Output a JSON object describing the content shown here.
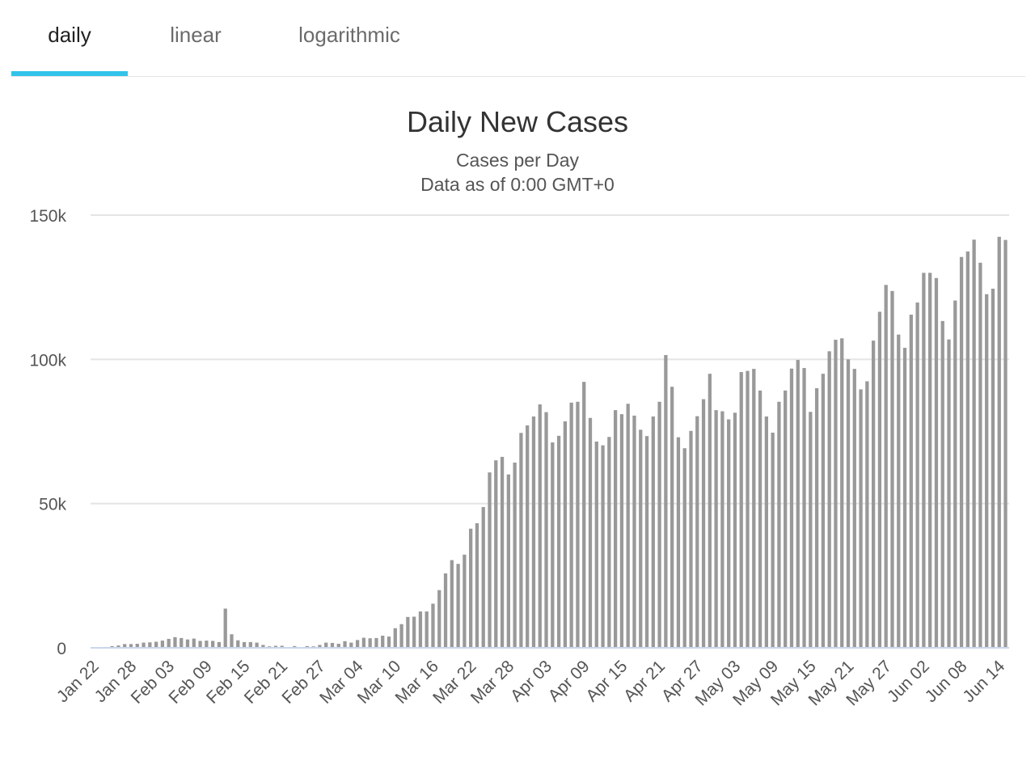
{
  "tabs": [
    {
      "label": "daily",
      "active": true
    },
    {
      "label": "linear",
      "active": false
    },
    {
      "label": "logarithmic",
      "active": false
    }
  ],
  "colors": {
    "accent": "#32c3ea",
    "bar": "#999999",
    "grid": "#e4e4e4",
    "baseline": "#ccd6eb"
  },
  "chart_data": {
    "type": "bar",
    "title": "Daily New Cases",
    "subtitle_lines": [
      "Cases per Day",
      "Data as of 0:00 GMT+0"
    ],
    "xlabel": "",
    "ylabel": "",
    "ylim": [
      0,
      150000
    ],
    "yticks": [
      0,
      50000,
      100000,
      150000
    ],
    "ytick_labels": [
      "0",
      "50k",
      "100k",
      "150k"
    ],
    "grid": true,
    "legend": "none",
    "start_date": "Jan 22",
    "xtick_labels": [
      "Jan 22",
      "Jan 28",
      "Feb 03",
      "Feb 09",
      "Feb 15",
      "Feb 21",
      "Feb 27",
      "Mar 04",
      "Mar 10",
      "Mar 16",
      "Mar 22",
      "Mar 28",
      "Apr 03",
      "Apr 09",
      "Apr 15",
      "Apr 21",
      "Apr 27",
      "May 03",
      "May 09",
      "May 15",
      "May 21",
      "May 27",
      "Jun 02",
      "Jun 08",
      "Jun 14"
    ],
    "series": [
      {
        "values": [
          0,
          100,
          300,
          600,
          800,
          1300,
          1300,
          1400,
          1800,
          1900,
          2100,
          2500,
          3100,
          3700,
          3400,
          2900,
          3200,
          2400,
          2500,
          2400,
          2000,
          13600,
          4700,
          2600,
          2000,
          2000,
          1800,
          1000,
          500,
          700,
          700,
          200,
          600,
          200,
          600,
          500,
          1000,
          1800,
          1700,
          1400,
          2300,
          1800,
          2700,
          3500,
          3300,
          3400,
          4200,
          3900,
          6800,
          8200,
          10700,
          10800,
          12600,
          12600,
          15300,
          20000,
          25800,
          30400,
          29100,
          32300,
          41300,
          43200,
          48800,
          60800,
          65000,
          66200,
          60100,
          64200,
          74500,
          77100,
          80200,
          84400,
          81700,
          71200,
          73500,
          78500,
          85000,
          85300,
          92200,
          79700,
          71500,
          70200,
          73100,
          82400,
          81000,
          84600,
          80500,
          75600,
          73400,
          80200,
          85300,
          101500,
          90500,
          73000,
          69200,
          75200,
          80300,
          86200,
          95000,
          82400,
          82000,
          79200,
          81500,
          95600,
          96000,
          96700,
          89200,
          80200,
          74600,
          85300,
          89200,
          96800,
          99800,
          97000,
          81800,
          90000,
          95000,
          102800,
          106800,
          107300,
          100000,
          96700,
          89600,
          92400,
          106500,
          116500,
          125800,
          123700,
          108600,
          104000,
          115500,
          119700,
          130000,
          130000,
          128200,
          113300,
          106900,
          120400,
          135500,
          137400,
          141500,
          133500,
          122600,
          124500,
          142500,
          141400
        ]
      }
    ]
  }
}
